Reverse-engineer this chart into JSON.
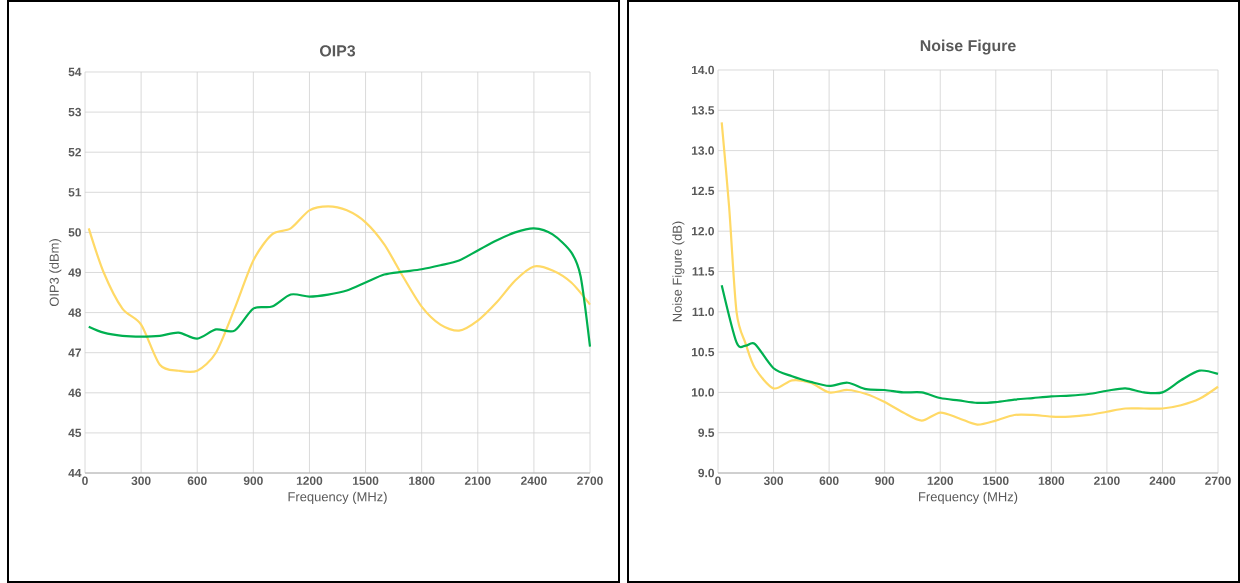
{
  "chart_data": [
    {
      "type": "line",
      "title": "OIP3",
      "xlabel": "Frequency (MHz)",
      "ylabel": "OIP3 (dBm)",
      "xlim": [
        0,
        2700
      ],
      "ylim": [
        44,
        54
      ],
      "xticks": [
        0,
        300,
        600,
        900,
        1200,
        1500,
        1800,
        2100,
        2400,
        2700
      ],
      "yticks": [
        44,
        45,
        46,
        47,
        48,
        49,
        50,
        51,
        52,
        53,
        54
      ],
      "grid": true,
      "series": [
        {
          "color": "#ffd966",
          "x": [
            20,
            100,
            200,
            300,
            400,
            500,
            600,
            700,
            800,
            900,
            1000,
            1100,
            1200,
            1300,
            1400,
            1500,
            1600,
            1700,
            1800,
            1900,
            2000,
            2100,
            2200,
            2300,
            2400,
            2500,
            2600,
            2700
          ],
          "values": [
            50.1,
            49.0,
            48.1,
            47.7,
            46.7,
            46.55,
            46.55,
            47.0,
            48.1,
            49.3,
            49.95,
            50.1,
            50.55,
            50.65,
            50.55,
            50.25,
            49.7,
            48.9,
            48.15,
            47.7,
            47.55,
            47.8,
            48.25,
            48.8,
            49.15,
            49.05,
            48.75,
            48.2
          ]
        },
        {
          "color": "#00b050",
          "x": [
            20,
            100,
            200,
            300,
            400,
            500,
            600,
            700,
            800,
            900,
            1000,
            1100,
            1200,
            1300,
            1400,
            1500,
            1600,
            1700,
            1800,
            1900,
            2000,
            2100,
            2200,
            2300,
            2400,
            2500,
            2600,
            2650,
            2700
          ],
          "values": [
            47.65,
            47.5,
            47.42,
            47.4,
            47.42,
            47.5,
            47.35,
            47.58,
            47.55,
            48.1,
            48.15,
            48.45,
            48.4,
            48.45,
            48.55,
            48.75,
            48.95,
            49.02,
            49.08,
            49.18,
            49.3,
            49.55,
            49.8,
            50.0,
            50.1,
            49.95,
            49.5,
            48.9,
            47.15
          ]
        }
      ]
    },
    {
      "type": "line",
      "title": "Noise Figure",
      "xlabel": "Frequency (MHz)",
      "ylabel": "Noise Figure (dB)",
      "xlim": [
        0,
        2700
      ],
      "ylim": [
        9,
        14
      ],
      "xticks": [
        0,
        300,
        600,
        900,
        1200,
        1500,
        1800,
        2100,
        2400,
        2700
      ],
      "yticks": [
        {
          "value": 9,
          "label": "9.0"
        },
        {
          "value": 9.5,
          "label": "9.5"
        },
        {
          "value": 10,
          "label": "10.0"
        },
        {
          "value": 10.5,
          "label": "10.5"
        },
        {
          "value": 11,
          "label": "11.0"
        },
        {
          "value": 11.5,
          "label": "11.5"
        },
        {
          "value": 12,
          "label": "12.0"
        },
        {
          "value": 12.5,
          "label": "12.5"
        },
        {
          "value": 13,
          "label": "13.0"
        },
        {
          "value": 13.5,
          "label": "13.5"
        },
        {
          "value": 14,
          "label": "14.0"
        }
      ],
      "grid": true,
      "series": [
        {
          "color": "#ffd966",
          "x": [
            20,
            60,
            100,
            150,
            200,
            300,
            400,
            500,
            600,
            700,
            800,
            900,
            1000,
            1100,
            1200,
            1300,
            1400,
            1500,
            1600,
            1700,
            1800,
            1900,
            2000,
            2100,
            2200,
            2300,
            2400,
            2500,
            2600,
            2700
          ],
          "values": [
            13.35,
            12.3,
            11.0,
            10.6,
            10.3,
            10.05,
            10.15,
            10.12,
            10.0,
            10.03,
            9.98,
            9.88,
            9.75,
            9.65,
            9.75,
            9.68,
            9.6,
            9.65,
            9.72,
            9.72,
            9.7,
            9.7,
            9.72,
            9.76,
            9.8,
            9.8,
            9.8,
            9.84,
            9.92,
            10.07
          ]
        },
        {
          "color": "#00b050",
          "x": [
            20,
            100,
            150,
            200,
            300,
            400,
            500,
            600,
            700,
            800,
            900,
            1000,
            1100,
            1200,
            1300,
            1400,
            1500,
            1600,
            1700,
            1800,
            1900,
            2000,
            2100,
            2200,
            2300,
            2400,
            2500,
            2600,
            2700
          ],
          "values": [
            11.33,
            10.62,
            10.58,
            10.6,
            10.3,
            10.2,
            10.13,
            10.08,
            10.12,
            10.04,
            10.03,
            10.0,
            10.0,
            9.93,
            9.9,
            9.87,
            9.88,
            9.91,
            9.93,
            9.95,
            9.96,
            9.98,
            10.02,
            10.05,
            10.0,
            10.0,
            10.15,
            10.27,
            10.23
          ]
        }
      ]
    }
  ]
}
